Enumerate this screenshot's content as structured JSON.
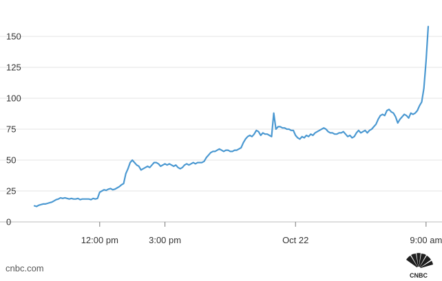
{
  "source_label": "cnbc.com",
  "logo_text": "CNBC",
  "colors": {
    "line": "#4a98d1",
    "grid": "#e3e3e3",
    "text": "#333333"
  },
  "chart_data": {
    "type": "line",
    "title": "",
    "xlabel": "",
    "ylabel": "",
    "ylim": [
      0,
      160
    ],
    "yticks": [
      0,
      25,
      50,
      75,
      100,
      125,
      150
    ],
    "grid": true,
    "xtick_labels": [
      {
        "label": "12:00 pm",
        "idx": 30
      },
      {
        "label": "3:00 pm",
        "idx": 60
      },
      {
        "label": "Oct 22",
        "idx": 120
      },
      {
        "label": "9:00 am",
        "idx": 180
      }
    ],
    "series": [
      {
        "values": [
          13,
          12.5,
          13.5,
          14,
          14.5,
          14.5,
          15,
          15.5,
          16,
          17,
          18,
          18.5,
          19.5,
          19,
          19.5,
          19,
          18.5,
          19,
          18.5,
          18.5,
          19,
          18,
          18.5,
          18.5,
          18.5,
          18.5,
          18,
          19,
          18.5,
          19,
          24,
          25,
          26,
          25.5,
          26.5,
          27,
          26,
          26.5,
          27.5,
          28.5,
          30,
          31,
          39,
          43,
          48,
          50,
          48,
          46,
          45,
          42,
          43,
          44,
          45,
          44,
          46,
          48,
          48,
          47,
          45,
          46,
          47,
          46,
          47,
          46,
          45,
          46,
          44,
          43,
          44,
          46,
          47,
          46,
          47,
          48,
          47,
          48,
          48,
          48,
          49,
          52,
          54,
          56,
          57,
          57,
          58,
          59,
          58,
          57,
          58,
          58,
          57,
          57,
          58,
          58,
          59,
          60,
          64,
          67,
          69,
          70,
          69,
          71,
          74,
          73,
          70,
          72,
          71,
          71,
          70,
          69,
          88,
          75,
          77,
          77,
          76,
          76,
          75,
          75,
          74,
          74,
          70,
          68,
          67,
          69,
          68,
          70,
          69,
          71,
          70,
          72,
          73,
          74,
          75,
          76,
          75,
          73,
          72,
          72,
          71,
          71,
          72,
          72,
          73,
          71,
          69,
          70,
          68,
          69,
          72,
          74,
          72,
          73,
          74,
          72,
          74,
          75,
          77,
          79,
          83,
          86,
          87,
          86,
          90,
          91,
          89,
          88,
          85,
          80,
          83,
          85,
          87,
          86,
          84,
          88,
          87,
          88,
          90,
          94,
          97,
          108,
          130,
          158
        ]
      }
    ]
  }
}
